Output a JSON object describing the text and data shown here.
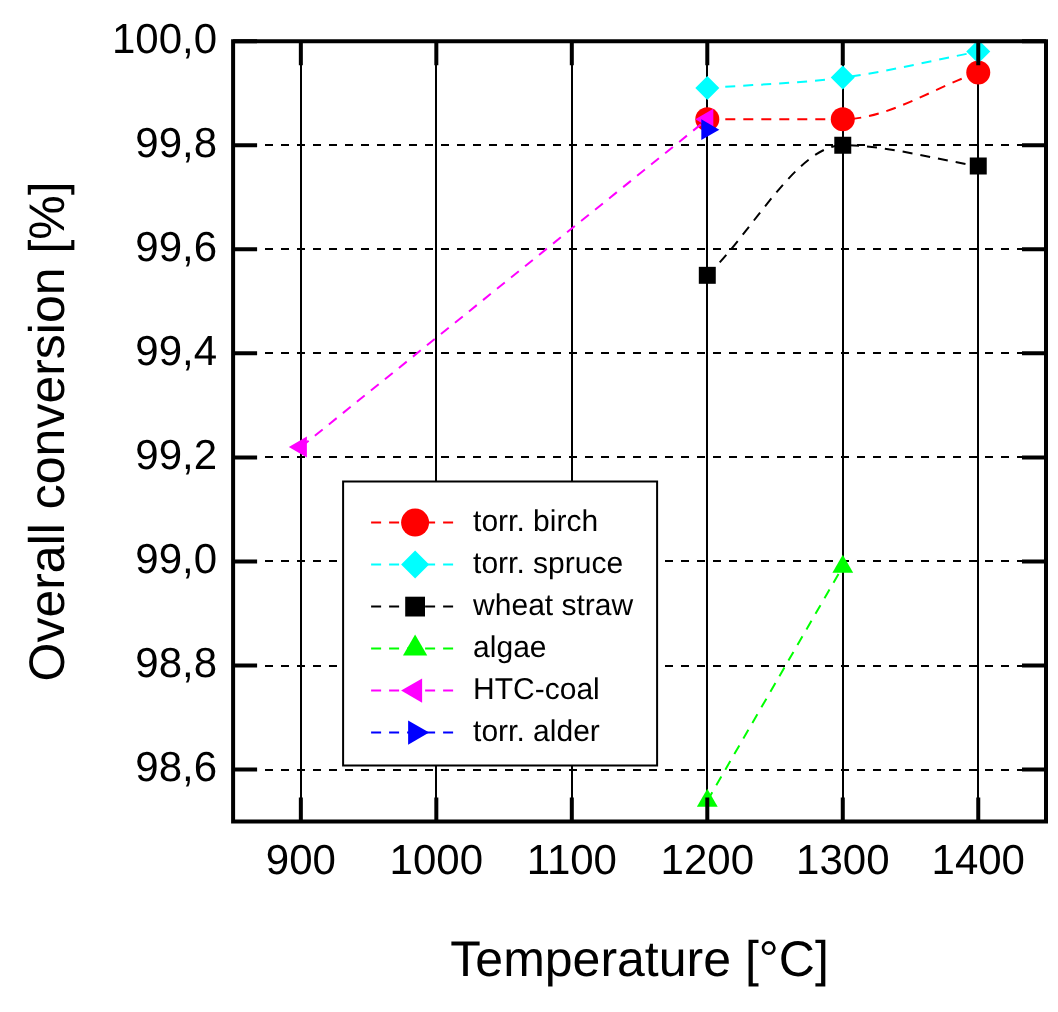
{
  "chart_data": {
    "type": "line",
    "xlabel": "Temperature [°C]",
    "ylabel": "Overall conversion [%]",
    "xlim": [
      850,
      1450
    ],
    "xticks": [
      900,
      1000,
      1100,
      1200,
      1300,
      1400
    ],
    "ylim": [
      98.5,
      100.0
    ],
    "yticks": [
      {
        "value": 98.6,
        "label": "98,6"
      },
      {
        "value": 98.8,
        "label": "98,8"
      },
      {
        "value": 99.0,
        "label": "99,0"
      },
      {
        "value": 99.2,
        "label": "99,2"
      },
      {
        "value": 99.4,
        "label": "99,4"
      },
      {
        "value": 99.6,
        "label": "99,6"
      },
      {
        "value": 99.8,
        "label": "99,8"
      },
      {
        "value": 100.0,
        "label": "100,0"
      }
    ],
    "grid": true,
    "legend": "bottom left",
    "line_style": "dashed",
    "series": [
      {
        "name": "torr. birch",
        "color": "#ff0000",
        "marker": "circle",
        "x": [
          1200,
          1300,
          1400
        ],
        "values": [
          99.85,
          99.85,
          99.94
        ]
      },
      {
        "name": "torr. spruce",
        "color": "#00ffff",
        "marker": "diamond",
        "x": [
          1200,
          1300,
          1400
        ],
        "values": [
          99.91,
          99.93,
          99.98
        ]
      },
      {
        "name": "wheat straw",
        "color": "#000000",
        "marker": "square",
        "x": [
          1200,
          1300,
          1400
        ],
        "values": [
          99.55,
          99.8,
          99.76
        ]
      },
      {
        "name": "algae",
        "color": "#00ff00",
        "marker": "triangle",
        "x": [
          1200,
          1300
        ],
        "values": [
          98.54,
          98.99
        ]
      },
      {
        "name": "HTC-coal",
        "color": "#ff00ff",
        "marker": "triangle-left",
        "x": [
          900,
          1200
        ],
        "values": [
          99.22,
          99.85
        ]
      },
      {
        "name": "torr. alder",
        "color": "#0000ff",
        "marker": "triangle-right",
        "x": [
          1200
        ],
        "values": [
          99.83
        ]
      }
    ]
  }
}
